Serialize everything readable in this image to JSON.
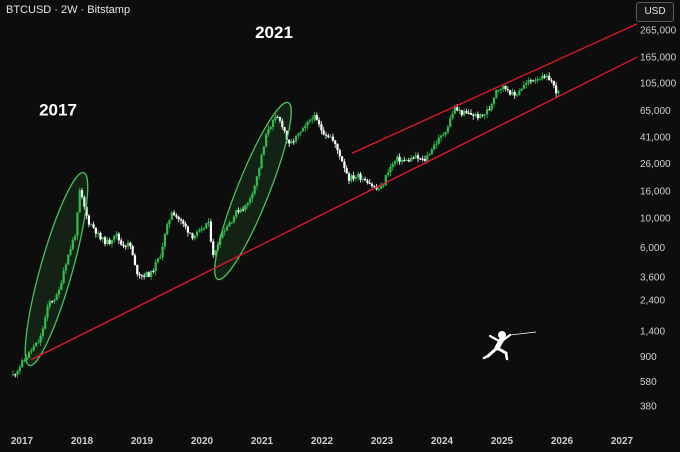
{
  "header": {
    "title": "BTCUSD · 2W · Bitstamp",
    "currency_button": "USD"
  },
  "colors": {
    "background": "#0d0d0d",
    "up": "#2fbf4a",
    "down": "#ffffff",
    "channel": "#e8182b",
    "ellipse": "#49c15a"
  },
  "chart_data": {
    "type": "candlestick",
    "title": "BTCUSD · 2W · Bitstamp",
    "y_scale": "log",
    "ylim": [
      330,
      330000
    ],
    "x_range": [
      2016.9,
      2027.1
    ],
    "y_ticks": [
      {
        "value": 265000,
        "label": "265,000"
      },
      {
        "value": 165000,
        "label": "165,000"
      },
      {
        "value": 105000,
        "label": "105,000"
      },
      {
        "value": 65000,
        "label": "65,000"
      },
      {
        "value": 41000,
        "label": "41,000"
      },
      {
        "value": 26000,
        "label": "26,000"
      },
      {
        "value": 16000,
        "label": "16,000"
      },
      {
        "value": 10000,
        "label": "10,000"
      },
      {
        "value": 6000,
        "label": "6,000"
      },
      {
        "value": 3600,
        "label": "3,600"
      },
      {
        "value": 2400,
        "label": "2,400"
      },
      {
        "value": 1400,
        "label": "1,400"
      },
      {
        "value": 900,
        "label": "900"
      },
      {
        "value": 580,
        "label": "580"
      },
      {
        "value": 380,
        "label": "380"
      }
    ],
    "x_ticks": [
      "2017",
      "2018",
      "2019",
      "2020",
      "2021",
      "2022",
      "2023",
      "2024",
      "2025",
      "2026",
      "2027"
    ],
    "annotations": [
      {
        "text": "2017",
        "x": 2017.6,
        "y": 60000
      },
      {
        "text": "2021",
        "x": 2021.2,
        "y": 230000
      }
    ],
    "price_path": [
      [
        2016.85,
        650
      ],
      [
        2017.0,
        800
      ],
      [
        2017.15,
        1000
      ],
      [
        2017.3,
        1200
      ],
      [
        2017.45,
        2300
      ],
      [
        2017.6,
        2600
      ],
      [
        2017.7,
        4200
      ],
      [
        2017.8,
        5800
      ],
      [
        2017.9,
        8000
      ],
      [
        2017.96,
        16000
      ],
      [
        2018.0,
        14000
      ],
      [
        2018.1,
        9500
      ],
      [
        2018.2,
        8500
      ],
      [
        2018.3,
        7000
      ],
      [
        2018.45,
        6500
      ],
      [
        2018.55,
        7800
      ],
      [
        2018.65,
        6400
      ],
      [
        2018.8,
        6300
      ],
      [
        2018.9,
        4000
      ],
      [
        2019.0,
        3700
      ],
      [
        2019.15,
        3800
      ],
      [
        2019.3,
        5200
      ],
      [
        2019.4,
        8000
      ],
      [
        2019.5,
        11500
      ],
      [
        2019.6,
        10000
      ],
      [
        2019.75,
        8300
      ],
      [
        2019.85,
        7300
      ],
      [
        2020.0,
        8000
      ],
      [
        2020.1,
        9600
      ],
      [
        2020.2,
        5000
      ],
      [
        2020.3,
        7500
      ],
      [
        2020.45,
        9200
      ],
      [
        2020.6,
        11500
      ],
      [
        2020.75,
        12500
      ],
      [
        2020.9,
        19000
      ],
      [
        2021.0,
        30000
      ],
      [
        2021.1,
        48000
      ],
      [
        2021.25,
        58000
      ],
      [
        2021.35,
        50000
      ],
      [
        2021.45,
        35000
      ],
      [
        2021.55,
        40000
      ],
      [
        2021.7,
        47000
      ],
      [
        2021.85,
        60000
      ],
      [
        2022.0,
        46000
      ],
      [
        2022.15,
        41000
      ],
      [
        2022.3,
        30000
      ],
      [
        2022.45,
        20000
      ],
      [
        2022.6,
        21000
      ],
      [
        2022.75,
        19500
      ],
      [
        2022.9,
        16500
      ],
      [
        2023.0,
        17000
      ],
      [
        2023.1,
        23000
      ],
      [
        2023.25,
        28000
      ],
      [
        2023.4,
        27000
      ],
      [
        2023.55,
        29000
      ],
      [
        2023.7,
        27000
      ],
      [
        2023.85,
        35000
      ],
      [
        2024.0,
        42000
      ],
      [
        2024.1,
        50000
      ],
      [
        2024.2,
        68000
      ],
      [
        2024.35,
        62000
      ],
      [
        2024.5,
        61000
      ],
      [
        2024.65,
        58000
      ],
      [
        2024.8,
        68000
      ],
      [
        2024.9,
        95000
      ],
      [
        2025.0,
        98000
      ],
      [
        2025.1,
        95000
      ],
      [
        2025.2,
        83000
      ],
      [
        2025.3,
        95000
      ],
      [
        2025.45,
        108000
      ],
      [
        2025.6,
        117000
      ],
      [
        2025.7,
        113000
      ],
      [
        2025.8,
        115000
      ],
      [
        2025.88,
        95000
      ],
      [
        2025.95,
        87000
      ]
    ],
    "channel_lines": [
      {
        "name": "lower",
        "points": [
          [
            2017.15,
            850
          ],
          [
            2027.25,
            165000
          ]
        ]
      },
      {
        "name": "upper",
        "points": [
          [
            2022.5,
            31000
          ],
          [
            2027.25,
            295000
          ]
        ]
      }
    ],
    "ellipses": [
      {
        "label": "2017 rally",
        "center": [
          2017.58,
          4200
        ],
        "low": [
          2017.15,
          850
        ],
        "high": [
          2018.0,
          20000
        ]
      },
      {
        "label": "2021 rally",
        "center": [
          2020.85,
          17000
        ],
        "low": [
          2020.3,
          3800
        ],
        "high": [
          2021.4,
          68000
        ]
      }
    ]
  }
}
